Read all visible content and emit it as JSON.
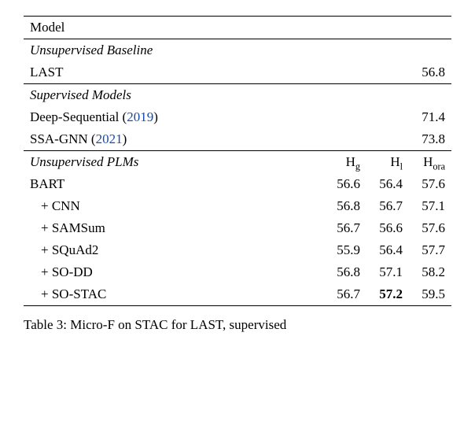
{
  "table": {
    "header": {
      "model_label": "Model"
    },
    "plm_header": {
      "col_hg": "H",
      "col_hg_sub": "g",
      "col_hl": "H",
      "col_hl_sub": "l",
      "col_hora": "H",
      "col_hora_sub": "ora"
    },
    "sections": {
      "unsupervised_baseline": {
        "label": "Unsupervised Baseline"
      },
      "supervised_models": {
        "label": "Supervised Models"
      },
      "unsupervised_plms": {
        "label": "Unsupervised PLMs"
      }
    },
    "rows": {
      "last": {
        "name": "LAST",
        "value": "56.8"
      },
      "deep_sequential": {
        "name_pre": "Deep-Sequential (",
        "cite_year": "2019",
        "name_post": ")",
        "value": "71.4"
      },
      "ssa_gnn": {
        "name_pre": "SSA-GNN (",
        "cite_year": "2021",
        "name_post": ")",
        "value": "73.8"
      },
      "bart": {
        "name": "BART",
        "hg": "56.6",
        "hl": "56.4",
        "hora": "57.6"
      },
      "cnn": {
        "name": "+ CNN",
        "hg": "56.8",
        "hl": "56.7",
        "hora": "57.1"
      },
      "samsum": {
        "name": "+ SAMSum",
        "hg": "56.7",
        "hl": "56.6",
        "hora": "57.6"
      },
      "squad2": {
        "name": "+ SQuAd2",
        "hg": "55.9",
        "hl": "56.4",
        "hora": "57.7"
      },
      "so_dd": {
        "name": "+ SO-DD",
        "hg": "56.8",
        "hl": "57.1",
        "hora": "58.2"
      },
      "so_stac": {
        "name": "+ SO-STAC",
        "hg": "56.7",
        "hl": "57.2",
        "hora": "59.5"
      }
    }
  },
  "caption": {
    "prefix": "Table 3: ",
    "body_fragment": "Micro-F  on STAC for LAST, supervised"
  }
}
